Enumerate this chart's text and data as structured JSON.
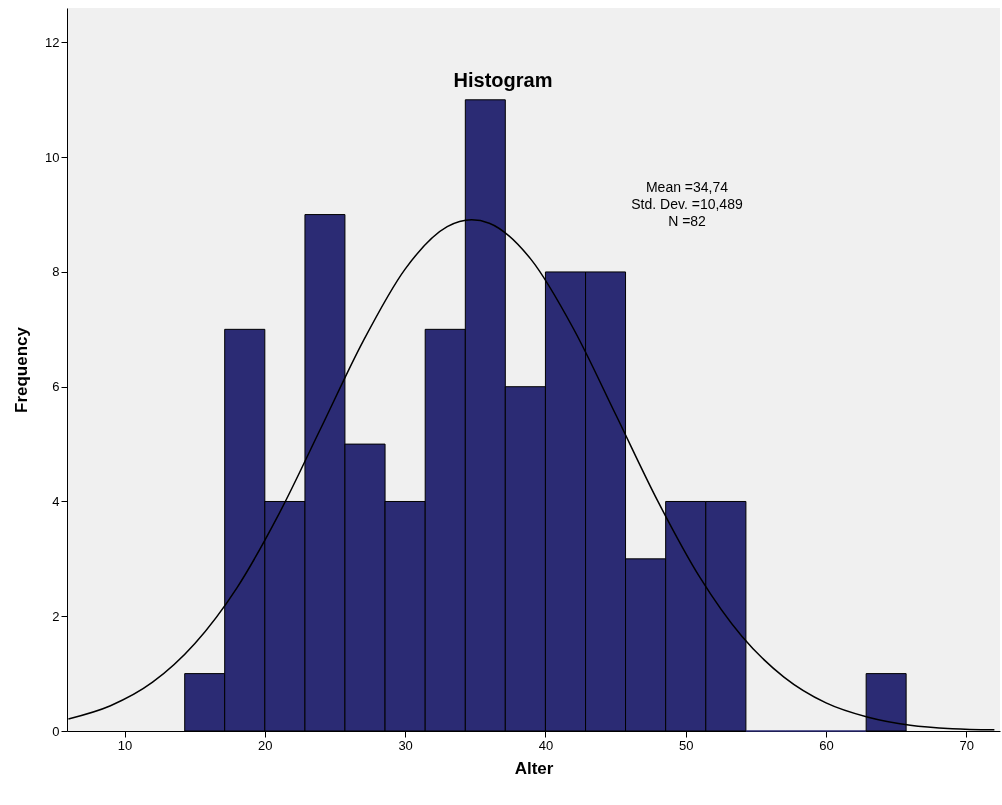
{
  "chart_data": {
    "type": "histogram",
    "title": "Histogram",
    "xlabel": "Alter",
    "ylabel": "Frequency",
    "bins": [
      14.29,
      17.14,
      20,
      22.86,
      25.71,
      28.57,
      31.43,
      34.29,
      37.14,
      40,
      42.86,
      45.71,
      48.57,
      51.43,
      54.29,
      57.14,
      60,
      62.86,
      65.71
    ],
    "series": [
      {
        "color": "#2b2b74",
        "values": [
          1,
          7,
          4,
          9,
          5,
          4,
          7,
          11,
          6,
          8,
          8,
          3,
          4,
          4,
          0,
          0,
          0,
          1
        ]
      },
      {
        "type": "line",
        "color": "#000000",
        "x": [
          6,
          9,
          12,
          15,
          18,
          21,
          24,
          27,
          30,
          33,
          34.74,
          36,
          39,
          42,
          45,
          48,
          51,
          54,
          57,
          60,
          63,
          66,
          69,
          72
        ],
        "values": [
          0.21,
          0.44,
          0.85,
          1.52,
          2.49,
          3.78,
          5.28,
          6.79,
          8.05,
          8.79,
          8.91,
          8.85,
          8.21,
          7.01,
          5.52,
          4.01,
          2.68,
          1.65,
          0.94,
          0.49,
          0.24,
          0.1,
          0.04,
          0.02
        ]
      }
    ],
    "annotations": [
      "Mean =34,74",
      "Std. Dev. =10,489",
      "N =82"
    ],
    "xlim": [
      5.9,
      72.4
    ],
    "ylim": [
      0,
      12.6
    ],
    "xticks": [
      10,
      20,
      30,
      40,
      50,
      60,
      70
    ],
    "yticks": [
      0,
      2,
      4,
      6,
      8,
      10,
      12
    ],
    "grid": false
  }
}
